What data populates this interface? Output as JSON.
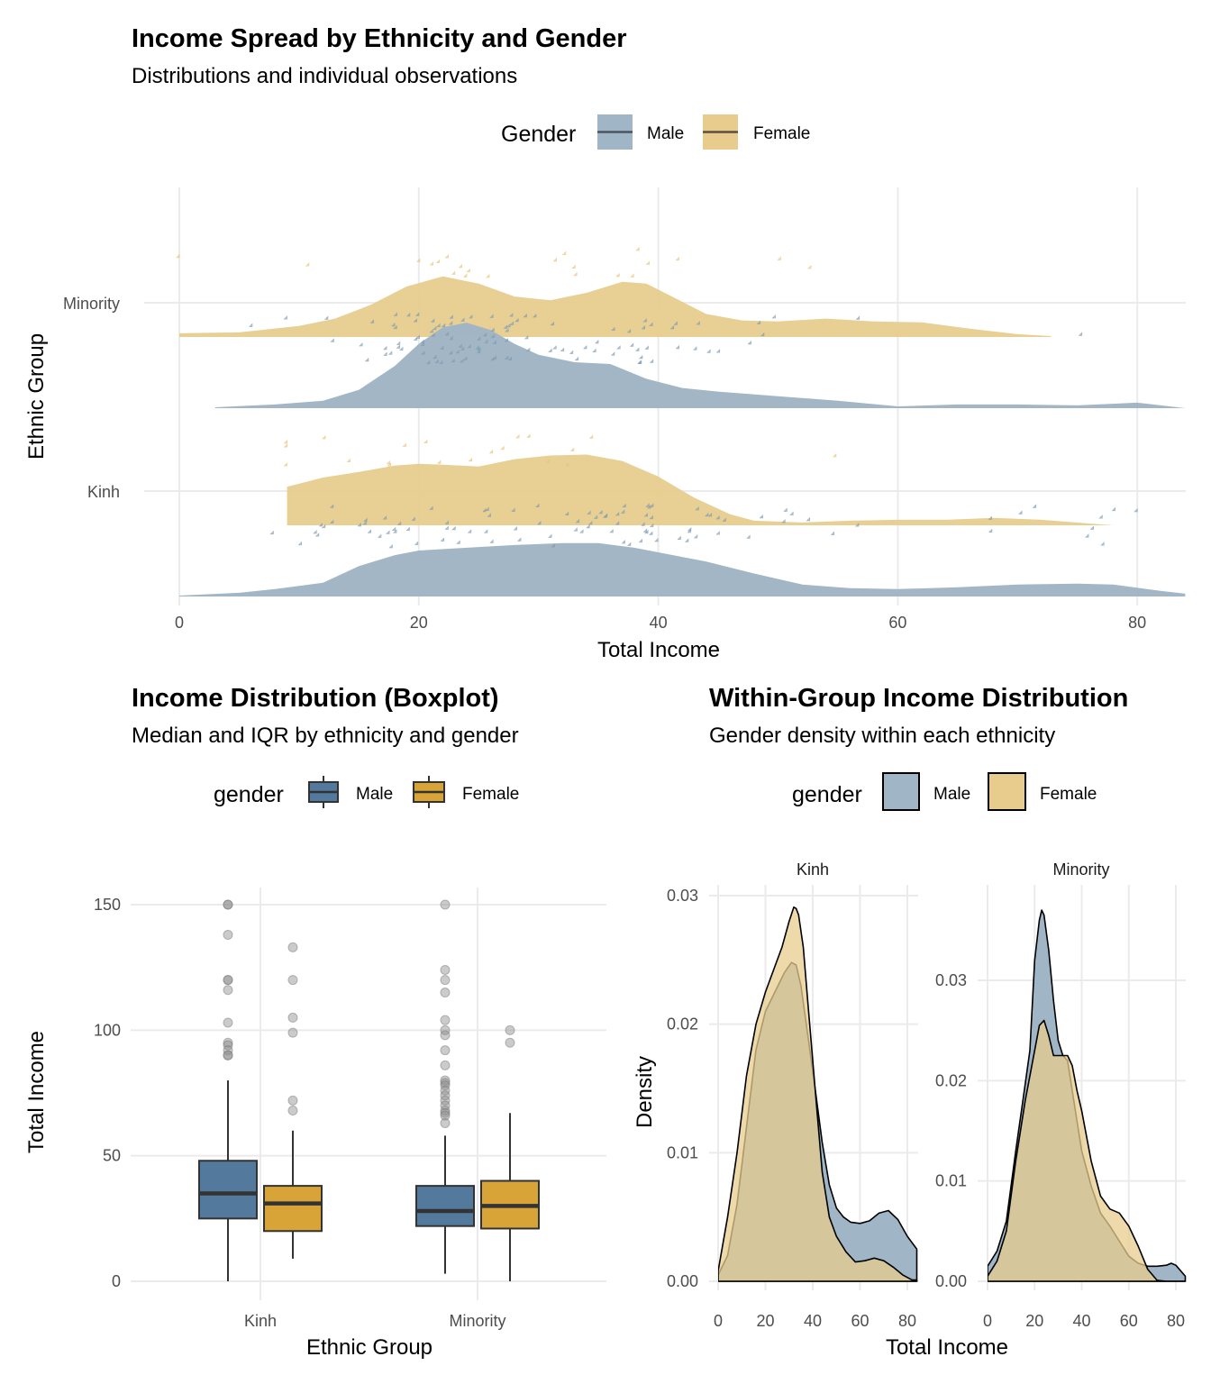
{
  "colors": {
    "male_light": "#A0B5C5",
    "female_light": "#E7CC8D",
    "male_box": "#537A9C",
    "female_box": "#D8A437",
    "outline": "#333333",
    "male_point": "#7F9BB2",
    "female_point": "#E8C47A",
    "outlier": "#8c8c8c"
  },
  "chart_data": [
    {
      "id": "raincloud",
      "type": "area",
      "title": "Income Spread by Ethnicity and Gender",
      "subtitle": "Distributions and individual observations",
      "xlabel": "Total Income",
      "ylabel": "Ethnic Group",
      "xlim": [
        0,
        84
      ],
      "x_ticks": [
        0,
        20,
        40,
        60,
        80
      ],
      "x_tick_labels": [
        "0",
        "20",
        "40",
        "60",
        "80"
      ],
      "y_categories": [
        "Kinh",
        "Minority"
      ],
      "grid": true,
      "legend": {
        "title": "Gender",
        "position": "top",
        "entries": [
          "Male",
          "Female"
        ]
      },
      "density_note": "relative density heights (0-1 scale, shared)",
      "series": [
        {
          "group": "Minority",
          "gender": "Female",
          "x": [
            0,
            5,
            10,
            13,
            16,
            19,
            22,
            25,
            28,
            31,
            34,
            37,
            39,
            41,
            44,
            47,
            50,
            54,
            58,
            62,
            66,
            70,
            72.8
          ],
          "density": [
            0.04,
            0.05,
            0.12,
            0.2,
            0.35,
            0.55,
            0.66,
            0.58,
            0.44,
            0.4,
            0.48,
            0.6,
            0.58,
            0.45,
            0.25,
            0.18,
            0.17,
            0.2,
            0.17,
            0.16,
            0.09,
            0.03,
            0.01
          ]
        },
        {
          "group": "Minority",
          "gender": "Male",
          "x": [
            3,
            8,
            12,
            15,
            18,
            20,
            22,
            24,
            26,
            28,
            30,
            33,
            36,
            39,
            42,
            45,
            50,
            55,
            60,
            65,
            70,
            75,
            80,
            84
          ],
          "density": [
            0.01,
            0.04,
            0.08,
            0.2,
            0.46,
            0.7,
            0.88,
            0.93,
            0.85,
            0.7,
            0.58,
            0.5,
            0.48,
            0.32,
            0.22,
            0.18,
            0.13,
            0.08,
            0.02,
            0.04,
            0.04,
            0.03,
            0.06,
            0.0
          ]
        },
        {
          "group": "Kinh",
          "gender": "Female",
          "x": [
            9,
            12,
            15,
            18,
            20,
            22,
            25,
            28,
            31,
            34,
            37,
            40,
            43,
            46,
            48,
            52,
            56,
            60,
            64,
            68,
            72,
            76,
            78
          ],
          "density": [
            0.42,
            0.52,
            0.58,
            0.65,
            0.67,
            0.66,
            0.64,
            0.72,
            0.76,
            0.77,
            0.7,
            0.53,
            0.3,
            0.12,
            0.05,
            0.03,
            0.05,
            0.06,
            0.06,
            0.08,
            0.06,
            0.02,
            0.0
          ]
        },
        {
          "group": "Kinh",
          "gender": "Male",
          "x": [
            0,
            5,
            8,
            12,
            15,
            18,
            20,
            24,
            28,
            32,
            35,
            38,
            40,
            44,
            48,
            52,
            56,
            60,
            65,
            70,
            75,
            78,
            82,
            84
          ],
          "density": [
            0.01,
            0.04,
            0.08,
            0.15,
            0.33,
            0.45,
            0.5,
            0.53,
            0.56,
            0.58,
            0.58,
            0.53,
            0.48,
            0.38,
            0.25,
            0.13,
            0.09,
            0.08,
            0.1,
            0.13,
            0.14,
            0.13,
            0.06,
            0.03
          ]
        }
      ]
    },
    {
      "id": "boxplot",
      "type": "bar",
      "title": "Income Distribution (Boxplot)",
      "subtitle": "Median and IQR by ethnicity and gender",
      "xlabel": "Ethnic Group",
      "ylabel": "Total Income",
      "ylim": [
        0,
        155
      ],
      "y_ticks": [
        0,
        50,
        100,
        150
      ],
      "y_tick_labels": [
        "0",
        "50",
        "100",
        "150"
      ],
      "categories": [
        "Kinh",
        "Minority"
      ],
      "grid": true,
      "legend": {
        "title": "gender",
        "position": "top",
        "entries": [
          "Male",
          "Female"
        ]
      },
      "boxes": [
        {
          "group": "Kinh",
          "gender": "Male",
          "lower_whisker": 0,
          "q1": 25,
          "median": 35,
          "q3": 48,
          "upper_whisker": 80,
          "outliers": [
            150,
            150,
            138,
            120,
            120,
            116,
            103,
            95,
            94,
            92,
            90,
            90
          ]
        },
        {
          "group": "Kinh",
          "gender": "Female",
          "lower_whisker": 9,
          "q1": 20,
          "median": 31,
          "q3": 38,
          "upper_whisker": 60,
          "outliers": [
            133,
            120,
            105,
            99,
            72,
            68
          ]
        },
        {
          "group": "Minority",
          "gender": "Male",
          "lower_whisker": 3,
          "q1": 22,
          "median": 28,
          "q3": 38,
          "upper_whisker": 58,
          "outliers": [
            150,
            124,
            120,
            115,
            104,
            100,
            98,
            92,
            86,
            80,
            79,
            78,
            76,
            74,
            72,
            70,
            68,
            67,
            66,
            63
          ]
        },
        {
          "group": "Minority",
          "gender": "Female",
          "lower_whisker": 0,
          "q1": 21,
          "median": 30,
          "q3": 40,
          "upper_whisker": 67,
          "outliers": [
            100,
            95
          ]
        }
      ]
    },
    {
      "id": "density",
      "type": "area",
      "title": "Within-Group Income Distribution",
      "subtitle": "Gender density within each ethnicity",
      "xlabel": "Total Income",
      "ylabel": "Density",
      "legend": {
        "title": "gender",
        "position": "top",
        "entries": [
          "Male",
          "Female"
        ]
      },
      "grid": true,
      "facets": [
        {
          "label": "Kinh",
          "xlim": [
            0,
            84
          ],
          "ylim": [
            0,
            0.031
          ],
          "x_ticks": [
            0,
            20,
            40,
            60,
            80
          ],
          "x_tick_labels": [
            "0",
            "20",
            "40",
            "60",
            "80"
          ],
          "y_ticks": [
            0,
            0.01,
            0.02,
            0.03
          ],
          "y_tick_labels": [
            "0.00",
            "0.01",
            "0.02",
            "0.03"
          ],
          "series": [
            {
              "gender": "Male",
              "x": [
                0,
                4,
                8,
                12,
                16,
                20,
                24,
                28,
                31,
                33,
                35,
                38,
                41,
                44,
                47,
                50,
                53,
                56,
                60,
                64,
                68,
                72,
                76,
                80,
                84
              ],
              "density": [
                0.0005,
                0.002,
                0.006,
                0.012,
                0.018,
                0.021,
                0.0225,
                0.024,
                0.0248,
                0.0246,
                0.023,
                0.019,
                0.015,
                0.0108,
                0.0075,
                0.0057,
                0.005,
                0.0046,
                0.0045,
                0.0047,
                0.0053,
                0.0055,
                0.0048,
                0.0035,
                0.0025
              ]
            },
            {
              "gender": "Female",
              "x": [
                0,
                4,
                8,
                12,
                16,
                20,
                24,
                27,
                30,
                32,
                33,
                34,
                36,
                38,
                41,
                44,
                47,
                50,
                54,
                58,
                62,
                66,
                70,
                74,
                78,
                82,
                84
              ],
              "density": [
                0.0008,
                0.005,
                0.01,
                0.016,
                0.02,
                0.0225,
                0.0245,
                0.026,
                0.028,
                0.0291,
                0.029,
                0.0285,
                0.026,
                0.0215,
                0.015,
                0.0085,
                0.005,
                0.0035,
                0.0023,
                0.0015,
                0.0016,
                0.0018,
                0.0016,
                0.0011,
                0.0005,
                0.0001,
                0.0001
              ]
            }
          ]
        },
        {
          "label": "Minority",
          "xlim": [
            0,
            84
          ],
          "ylim": [
            0,
            0.039
          ],
          "x_ticks": [
            0,
            20,
            40,
            60,
            80
          ],
          "x_tick_labels": [
            "0",
            "20",
            "40",
            "60",
            "80"
          ],
          "y_ticks": [
            0,
            0.01,
            0.02,
            0.03
          ],
          "y_tick_labels": [
            "0.00",
            "0.01",
            "0.02",
            "0.03"
          ],
          "series": [
            {
              "gender": "Male",
              "x": [
                0,
                4,
                8,
                12,
                15,
                18,
                20,
                22,
                23,
                24,
                26,
                28,
                30,
                32,
                34,
                36,
                40,
                44,
                48,
                52,
                56,
                60,
                64,
                68,
                72,
                76,
                78,
                80,
                84
              ],
              "density": [
                0.0015,
                0.003,
                0.006,
                0.013,
                0.018,
                0.023,
                0.032,
                0.036,
                0.037,
                0.0365,
                0.033,
                0.028,
                0.024,
                0.0225,
                0.022,
                0.019,
                0.013,
                0.0095,
                0.0068,
                0.0055,
                0.004,
                0.0025,
                0.0018,
                0.0015,
                0.0015,
                0.0016,
                0.0018,
                0.0016,
                0.0005
              ]
            },
            {
              "gender": "Female",
              "x": [
                0,
                4,
                8,
                12,
                16,
                20,
                22,
                24,
                26,
                28,
                30,
                32,
                34,
                36,
                38,
                40,
                44,
                48,
                52,
                56,
                60,
                64,
                68,
                72,
                76,
                80,
                84
              ],
              "density": [
                0.0005,
                0.002,
                0.005,
                0.012,
                0.018,
                0.023,
                0.0255,
                0.026,
                0.0245,
                0.0225,
                0.0225,
                0.0225,
                0.0225,
                0.0215,
                0.019,
                0.017,
                0.012,
                0.0085,
                0.0072,
                0.0068,
                0.0055,
                0.0035,
                0.0012,
                0.0001,
                0.0,
                0.0,
                0.0
              ]
            }
          ]
        }
      ]
    }
  ]
}
